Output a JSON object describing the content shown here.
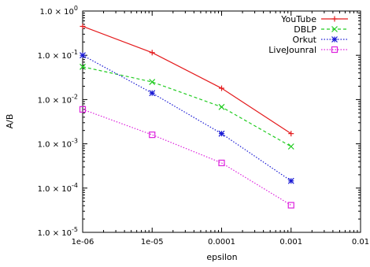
{
  "chart_data": {
    "type": "line",
    "title": "",
    "xlabel": "epsilon",
    "ylabel": "A/B",
    "x_scale": "log",
    "y_scale": "log",
    "xlim": [
      1e-06,
      0.01
    ],
    "ylim": [
      1e-05,
      1
    ],
    "x_ticks": [
      {
        "value": 1e-06,
        "label": "1e-06"
      },
      {
        "value": 1e-05,
        "label": "1e-05"
      },
      {
        "value": 0.0001,
        "label": "0.0001"
      },
      {
        "value": 0.001,
        "label": "0.001"
      },
      {
        "value": 0.01,
        "label": "0.01"
      }
    ],
    "y_ticks": [
      {
        "value": 1,
        "mantissa": "1.0 × 10",
        "exp": "0"
      },
      {
        "value": 0.1,
        "mantissa": "1.0 × 10",
        "exp": "-1"
      },
      {
        "value": 0.01,
        "mantissa": "1.0 × 10",
        "exp": "-2"
      },
      {
        "value": 0.001,
        "mantissa": "1.0 × 10",
        "exp": "-3"
      },
      {
        "value": 0.0001,
        "mantissa": "1.0 × 10",
        "exp": "-4"
      },
      {
        "value": 1e-05,
        "mantissa": "1.0 × 10",
        "exp": "-5"
      }
    ],
    "grid": false,
    "legend_position": "top-right",
    "x": [
      1e-06,
      1e-05,
      0.0001,
      0.001
    ],
    "series": [
      {
        "name": "YouTube",
        "color": "#e41a1c",
        "marker": "plus",
        "dash": "solid",
        "values": [
          0.45,
          0.115,
          0.018,
          0.0017
        ]
      },
      {
        "name": "DBLP",
        "color": "#22cc22",
        "marker": "cross",
        "dash": "dashed",
        "values": [
          0.055,
          0.025,
          0.0068,
          0.00087
        ]
      },
      {
        "name": "Orkut",
        "color": "#1a1ad4",
        "marker": "star",
        "dash": "dotted",
        "values": [
          0.1,
          0.014,
          0.0017,
          0.000145
        ]
      },
      {
        "name": "LiveJounral",
        "color": "#dd22dd",
        "marker": "square",
        "dash": "dotted",
        "values": [
          0.006,
          0.0016,
          0.00037,
          4.1e-05
        ]
      }
    ]
  }
}
